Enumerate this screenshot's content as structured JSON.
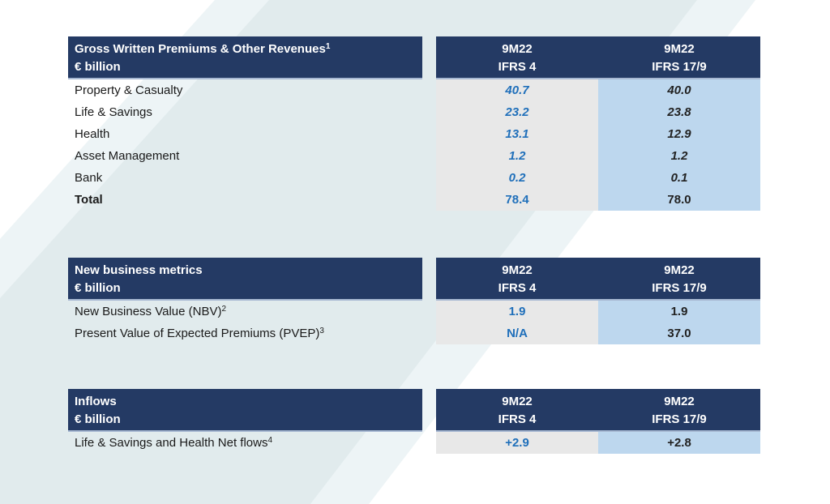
{
  "slide": {
    "background_color": "#E1EBED",
    "pale_stripe_color": "#EDF4F6",
    "header_bar_color": "#243A64",
    "header_underline_color": "#A7B8D2",
    "ifrs4_column_color": "#E8E8E8",
    "ifrs17_column_color": "#BDD7EE",
    "ifrs4_value_color": "#1F6FBA",
    "ifrs17_value_color": "#222222",
    "label_text_color": "#1A1A1A",
    "header_text_color": "#FFFFFF"
  },
  "tables": [
    {
      "title": "Gross Written Premiums & Other Revenues",
      "title_footnote": "1",
      "unit": "€ billion",
      "columns": [
        {
          "period": "9M22",
          "standard": "IFRS 4"
        },
        {
          "period": "9M22",
          "standard": "IFRS 17/9"
        }
      ],
      "rows": [
        {
          "label": "Property & Casualty",
          "footnote": "",
          "ifrs4": "40.7",
          "ifrs17": "40.0"
        },
        {
          "label": "Life & Savings",
          "footnote": "",
          "ifrs4": "23.2",
          "ifrs17": "23.8"
        },
        {
          "label": "Health",
          "footnote": "",
          "ifrs4": "13.1",
          "ifrs17": "12.9"
        },
        {
          "label": "Asset Management",
          "footnote": "",
          "ifrs4": "1.2",
          "ifrs17": "1.2"
        },
        {
          "label": "Bank",
          "footnote": "",
          "ifrs4": "0.2",
          "ifrs17": "0.1"
        },
        {
          "label": "Total",
          "footnote": "",
          "ifrs4": "78.4",
          "ifrs17": "78.0"
        }
      ]
    },
    {
      "title": "New business metrics",
      "title_footnote": "",
      "unit": "€ billion",
      "columns": [
        {
          "period": "9M22",
          "standard": "IFRS 4"
        },
        {
          "period": "9M22",
          "standard": "IFRS 17/9"
        }
      ],
      "rows": [
        {
          "label": "New Business Value (NBV)",
          "footnote": "2",
          "ifrs4": "1.9",
          "ifrs17": "1.9"
        },
        {
          "label": "Present Value of Expected Premiums (PVEP)",
          "footnote": "3",
          "ifrs4": "N/A",
          "ifrs17": "37.0"
        }
      ]
    },
    {
      "title": "Inflows",
      "title_footnote": "",
      "unit": "€ billion",
      "columns": [
        {
          "period": "9M22",
          "standard": "IFRS 4"
        },
        {
          "period": "9M22",
          "standard": "IFRS 17/9"
        }
      ],
      "rows": [
        {
          "label": "Life & Savings and Health Net flows",
          "footnote": "4",
          "ifrs4": "+2.9",
          "ifrs17": "+2.8"
        }
      ]
    }
  ]
}
